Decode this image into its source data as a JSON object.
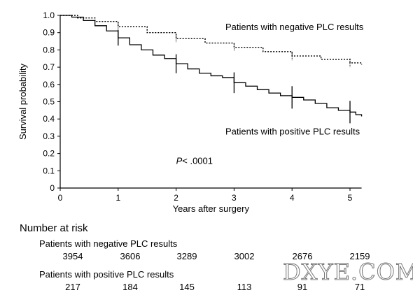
{
  "chart_data": {
    "type": "line",
    "xlabel": "Years after surgery",
    "ylabel": "Survival probability",
    "xlim": [
      0,
      5.2
    ],
    "ylim": [
      0,
      1.0
    ],
    "xticks": [
      "0",
      "1",
      "2",
      "3",
      "4",
      "5"
    ],
    "yticks": [
      "0",
      "0.1",
      "0.2",
      "0.3",
      "0.4",
      "0.5",
      "0.6",
      "0.7",
      "0.8",
      "0.9",
      "1.0"
    ],
    "grid": false,
    "annotations": [
      {
        "text_italic": "P",
        "text": "< .0001",
        "x": 2.0,
        "y": 0.14
      }
    ],
    "series": [
      {
        "name": "Patients with negative PLC results",
        "style": "dotted",
        "label_x": 2.85,
        "label_y": 0.915,
        "points": [
          [
            0,
            1.0
          ],
          [
            0.3,
            0.985
          ],
          [
            0.6,
            0.965
          ],
          [
            1,
            0.935
          ],
          [
            1.5,
            0.9
          ],
          [
            2,
            0.865
          ],
          [
            2.5,
            0.84
          ],
          [
            3,
            0.815
          ],
          [
            3.5,
            0.79
          ],
          [
            4,
            0.765
          ],
          [
            4.5,
            0.745
          ],
          [
            5,
            0.725
          ],
          [
            5.2,
            0.715
          ]
        ],
        "errorbars": [
          [
            1,
            0.935,
            0.02
          ],
          [
            2,
            0.865,
            0.02
          ],
          [
            3,
            0.815,
            0.02
          ],
          [
            4,
            0.765,
            0.025
          ],
          [
            5,
            0.725,
            0.025
          ]
        ]
      },
      {
        "name": "Patients with positive PLC results",
        "style": "solid",
        "label_x": 2.85,
        "label_y": 0.31,
        "points": [
          [
            0,
            1.0
          ],
          [
            0.2,
            0.99
          ],
          [
            0.4,
            0.97
          ],
          [
            0.6,
            0.94
          ],
          [
            0.8,
            0.91
          ],
          [
            1,
            0.87
          ],
          [
            1.2,
            0.83
          ],
          [
            1.4,
            0.8
          ],
          [
            1.6,
            0.77
          ],
          [
            1.8,
            0.75
          ],
          [
            2,
            0.72
          ],
          [
            2.2,
            0.69
          ],
          [
            2.4,
            0.665
          ],
          [
            2.6,
            0.65
          ],
          [
            2.8,
            0.64
          ],
          [
            3,
            0.61
          ],
          [
            3.2,
            0.59
          ],
          [
            3.4,
            0.57
          ],
          [
            3.6,
            0.55
          ],
          [
            3.8,
            0.535
          ],
          [
            4,
            0.525
          ],
          [
            4.2,
            0.51
          ],
          [
            4.4,
            0.49
          ],
          [
            4.6,
            0.465
          ],
          [
            4.8,
            0.45
          ],
          [
            5,
            0.44
          ],
          [
            5.1,
            0.425
          ],
          [
            5.2,
            0.415
          ]
        ],
        "errorbars": [
          [
            1,
            0.87,
            0.045
          ],
          [
            2,
            0.72,
            0.055
          ],
          [
            3,
            0.61,
            0.06
          ],
          [
            4,
            0.525,
            0.065
          ],
          [
            5,
            0.44,
            0.065
          ]
        ]
      }
    ]
  },
  "risk_table": {
    "title": "Number at risk",
    "groups": [
      {
        "label": "Patients with negative PLC results",
        "counts": [
          "3954",
          "3606",
          "3289",
          "3002",
          "2676",
          "2159"
        ]
      },
      {
        "label": "Patients with positive PLC results",
        "counts": [
          "217",
          "184",
          "145",
          "113",
          "91",
          "71"
        ]
      }
    ]
  },
  "watermark": "DXYE.COM"
}
